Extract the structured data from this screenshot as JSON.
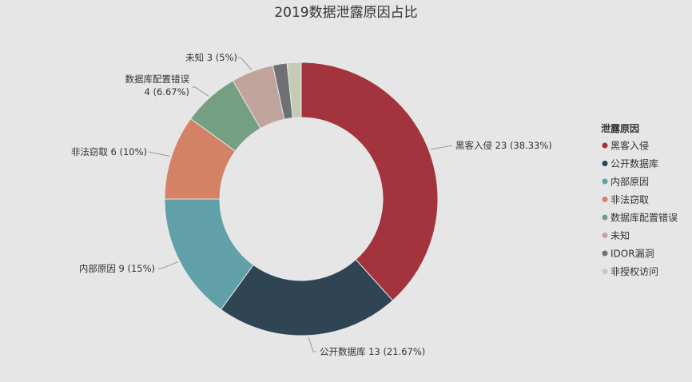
{
  "chart_data": {
    "type": "pie",
    "title": "2019数据泄露原因占比",
    "legend_title": "泄露原因",
    "legend_position": "right",
    "donut": true,
    "slices": [
      {
        "name": "黑客入侵",
        "value": 23,
        "label": "黑客入侵 23 (38.33%)",
        "color": "#a3333d"
      },
      {
        "name": "公开数据库",
        "value": 13,
        "label": "公开数据库 13 (21.67%)",
        "color": "#2f4554"
      },
      {
        "name": "内部原因",
        "value": 9,
        "label": "内部原因 9 (15%)",
        "color": "#61a0a8"
      },
      {
        "name": "非法窃取",
        "value": 6,
        "label": "非法窃取 6 (10%)",
        "color": "#d48265"
      },
      {
        "name": "数据库配置错误",
        "value": 4,
        "label": [
          "数据库配置错误",
          "4 (6.67%)"
        ],
        "color": "#749f83"
      },
      {
        "name": "未知",
        "value": 3,
        "label": "未知 3 (5%)",
        "color": "#c0a39a"
      },
      {
        "name": "IDOR漏洞",
        "value": 1,
        "label": "",
        "color": "#6e7074"
      },
      {
        "name": "非授权访问",
        "value": 1,
        "label": "",
        "color": "#c4ccb5"
      }
    ]
  }
}
